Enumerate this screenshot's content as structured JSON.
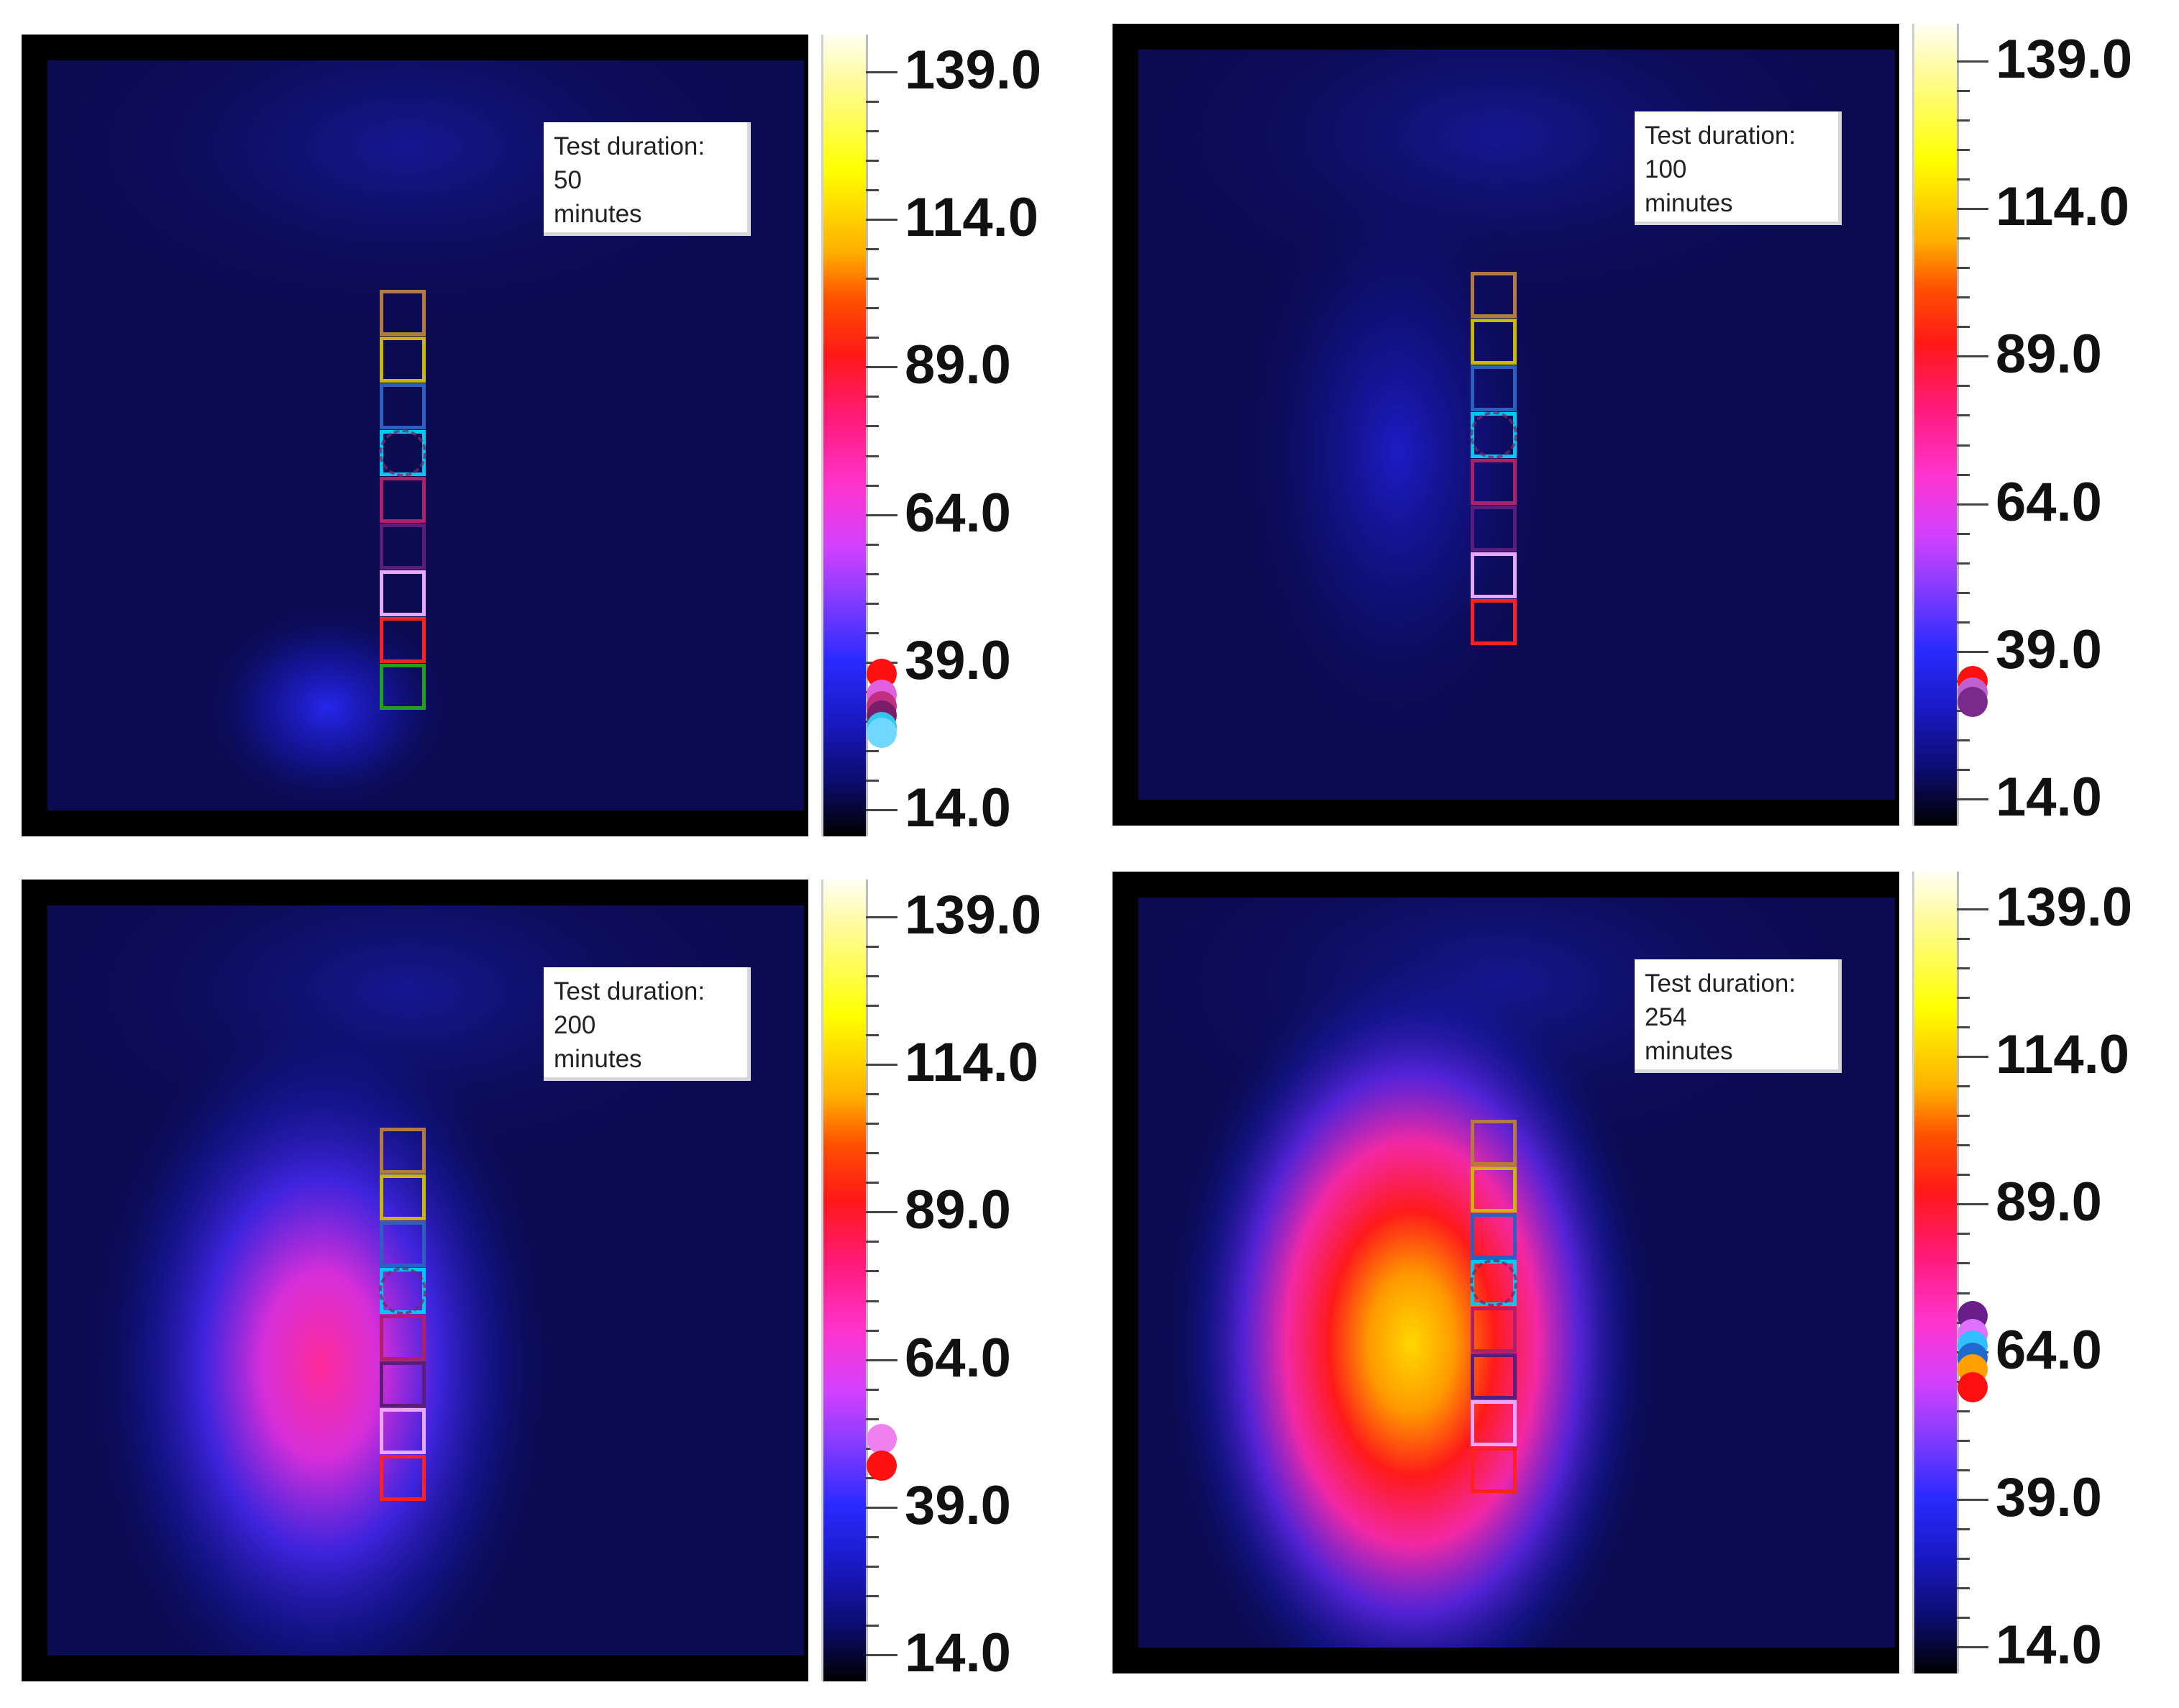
{
  "annotation_lines": [
    "Test duration:",
    "minutes"
  ],
  "scale": {
    "min": 14.0,
    "max": 139.0,
    "labels": [
      "139.0",
      "114.0",
      "89.0",
      "64.0",
      "39.0",
      "14.0"
    ]
  },
  "panels": [
    {
      "duration": "50",
      "sensors": [
        "#b57a40",
        "#c9b800",
        "#2c5fc0",
        "#00c8f0",
        "#b0206a",
        "#5a1e7a",
        "#e8a8ff",
        "#ff2020",
        "#20a020"
      ],
      "markers": [
        {
          "value": 37.0,
          "color": "#ff1010"
        },
        {
          "value": 33.5,
          "color": "#e060e0"
        },
        {
          "value": 31.5,
          "color": "#c03080"
        },
        {
          "value": 30.0,
          "color": "#7a1e6a"
        },
        {
          "value": 28.0,
          "color": "#30c8f0"
        },
        {
          "value": 27.0,
          "color": "#70d8ff"
        }
      ]
    },
    {
      "duration": "100",
      "sensors": [
        "#b57a40",
        "#c9b800",
        "#2c5fc0",
        "#00c8f0",
        "#b0206a",
        "#5a1e7a",
        "#e8a8ff",
        "#ff2020"
      ],
      "markers": [
        {
          "value": 34.0,
          "color": "#ff1010"
        },
        {
          "value": 32.0,
          "color": "#c060d0"
        },
        {
          "value": 30.5,
          "color": "#7a2a8a"
        }
      ]
    },
    {
      "duration": "200",
      "sensors": [
        "#b57a40",
        "#c9b800",
        "#2c5fc0",
        "#00c8f0",
        "#b0206a",
        "#5a1e7a",
        "#e8a8ff",
        "#ff2020"
      ],
      "markers": [
        {
          "value": 50.5,
          "color": "#f080f0"
        },
        {
          "value": 46.0,
          "color": "#ff1010"
        }
      ]
    },
    {
      "duration": "254",
      "sensors": [
        "#b57a40",
        "#c9b800",
        "#2c5fc0",
        "#00c8f0",
        "#b0206a",
        "#5a1e7a",
        "#e8a8ff",
        "#ff2020"
      ],
      "markers": [
        {
          "value": 70.0,
          "color": "#6a1e8a"
        },
        {
          "value": 67.0,
          "color": "#e070ff"
        },
        {
          "value": 65.0,
          "color": "#30c0ff"
        },
        {
          "value": 63.0,
          "color": "#1e6ad0"
        },
        {
          "value": 61.0,
          "color": "#ffa000"
        },
        {
          "value": 58.0,
          "color": "#ff1010"
        }
      ]
    }
  ]
}
